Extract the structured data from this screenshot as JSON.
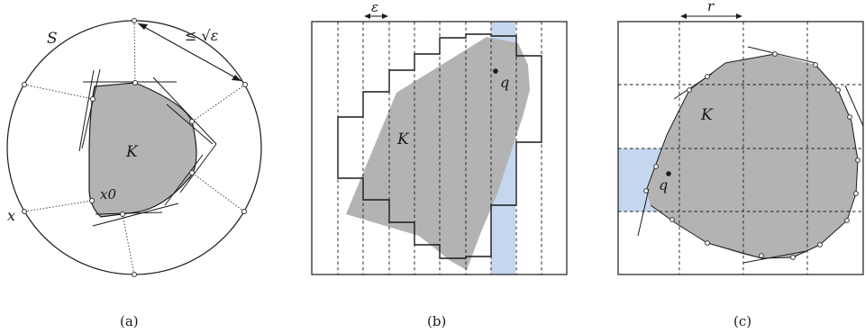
{
  "panel_a": {
    "caption": "(a)",
    "label_S": "S",
    "label_dist": "≤ √ε",
    "label_K": "K",
    "label_x0": "x0",
    "label_x": "x"
  },
  "panel_b": {
    "caption": "(b)",
    "label_eps": "ε",
    "label_K": "K",
    "label_q": "q"
  },
  "panel_c": {
    "caption": "(c)",
    "label_r": "r",
    "label_K": "K",
    "label_q": "q"
  },
  "colors": {
    "body_fill": "#b3b3b3",
    "highlight": "#c4d7ee",
    "stroke": "#1a1a1a"
  }
}
